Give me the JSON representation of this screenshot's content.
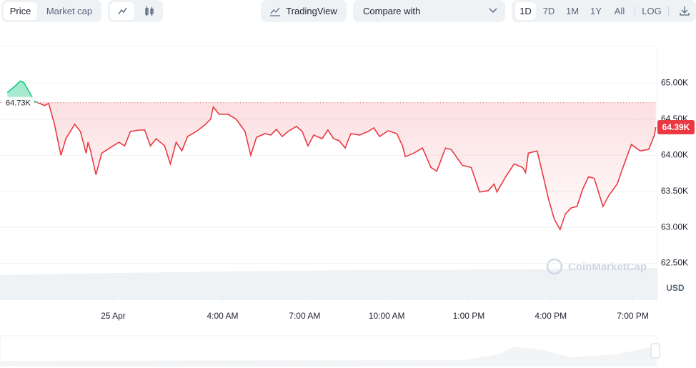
{
  "toolbar": {
    "view_tabs": [
      "Price",
      "Market cap"
    ],
    "tradingview": "TradingView",
    "compare": "Compare with",
    "ranges": [
      "1D",
      "7D",
      "1M",
      "1Y",
      "All"
    ],
    "log": "LOG"
  },
  "chart_data": {
    "type": "line",
    "color": "#ea3943",
    "above_color": "#16c784",
    "x": [
      -3.87,
      -3.56,
      -3.4,
      -3.27,
      -3.09,
      -2.88,
      -2.51,
      -2.36,
      -2.15,
      -1.91,
      -1.73,
      -1.41,
      -1.2,
      -0.99,
      -0.92,
      -0.84,
      -0.63,
      -0.42,
      -0.21,
      0,
      0.21,
      0.42,
      0.63,
      0.94,
      1.15,
      1.36,
      1.57,
      1.88,
      2.09,
      2.3,
      2.51,
      2.72,
      3.04,
      3.35,
      3.56,
      3.66,
      3.87,
      4.19,
      4.5,
      4.82,
      5.03,
      5.24,
      5.55,
      5.76,
      5.97,
      6.18,
      6.39,
      6.7,
      6.91,
      7.12,
      7.33,
      7.64,
      7.85,
      8.06,
      8.27,
      8.48,
      8.69,
      9.01,
      9.32,
      9.53,
      9.74,
      10.05,
      10.37,
      10.58,
      10.68,
      10.99,
      11.31,
      11.62,
      11.83,
      12.15,
      12.36,
      12.77,
      13.09,
      13.4,
      13.72,
      13.93,
      14.03,
      14.35,
      14.66,
      14.97,
      15.08,
      15.18,
      15.5,
      15.71,
      15.92,
      16.13,
      16.34,
      16.54,
      16.75,
      16.96,
      17.17,
      17.38,
      17.59,
      17.91,
      18.12,
      18.43,
      18.64,
      18.95,
      19.27,
      19.58,
      19.79,
      19.84
    ],
    "values": [
      64870,
      64970,
      65030,
      65010,
      64890,
      64750,
      64690,
      64720,
      64430,
      64000,
      64230,
      64430,
      64330,
      64030,
      64180,
      64080,
      63730,
      64030,
      64080,
      64130,
      64180,
      64130,
      64330,
      64350,
      64350,
      64130,
      64230,
      64130,
      63880,
      64180,
      64060,
      64260,
      64330,
      64420,
      64500,
      64670,
      64570,
      64570,
      64500,
      64330,
      64000,
      64250,
      64300,
      64280,
      64360,
      64260,
      64330,
      64400,
      64330,
      64130,
      64280,
      64230,
      64350,
      64230,
      64200,
      64100,
      64300,
      64280,
      64330,
      64380,
      64260,
      64340,
      64300,
      64130,
      63980,
      64030,
      64100,
      63830,
      63780,
      64100,
      64080,
      63860,
      63830,
      63490,
      63510,
      63600,
      63490,
      63700,
      63880,
      63830,
      63760,
      64030,
      64060,
      63730,
      63390,
      63110,
      62970,
      63190,
      63270,
      63290,
      63530,
      63700,
      63680,
      63290,
      63440,
      63600,
      63830,
      64150,
      64060,
      64080,
      64280,
      64390
    ],
    "xlim": [
      -4.14,
      19.9
    ],
    "ylim": [
      61990,
      65510
    ],
    "xticks": [
      {
        "value": 0,
        "label": "25 Apr"
      },
      {
        "value": 4,
        "label": "4:00 AM"
      },
      {
        "value": 7,
        "label": "7:00 AM"
      },
      {
        "value": 10,
        "label": "10:00 AM"
      },
      {
        "value": 13,
        "label": "1:00 PM"
      },
      {
        "value": 16,
        "label": "4:00 PM"
      },
      {
        "value": 19,
        "label": "7:00 PM"
      }
    ],
    "yticks": [
      {
        "value": 62500,
        "label": "62.50K"
      },
      {
        "value": 63000,
        "label": "63.00K"
      },
      {
        "value": 63500,
        "label": "63.50K"
      },
      {
        "value": 64000,
        "label": "64.00K"
      },
      {
        "value": 64500,
        "label": "64.50K"
      },
      {
        "value": 65000,
        "label": "65.00K"
      }
    ],
    "grid": true,
    "reference": {
      "value": 64730,
      "label": "64.73K"
    },
    "current": {
      "value": 64390,
      "label": "64.39K"
    },
    "currency": "USD",
    "watermark": "CoinMarketCap"
  }
}
